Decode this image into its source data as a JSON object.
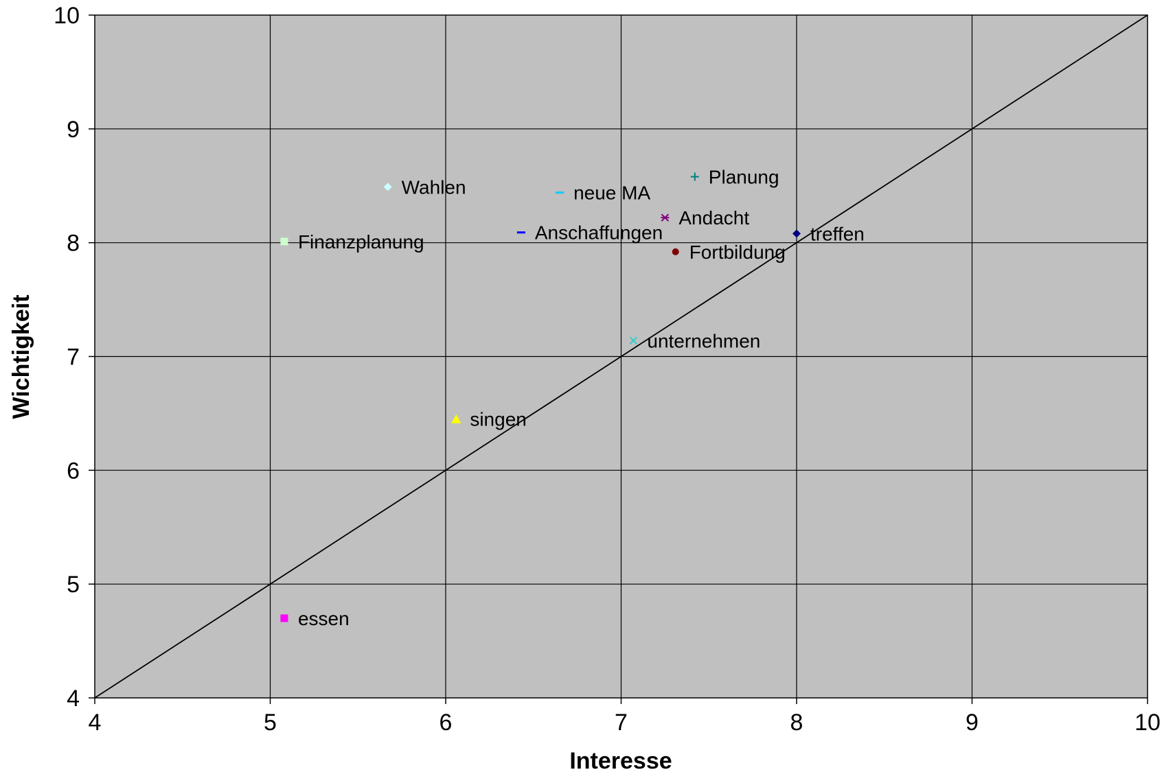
{
  "chart_data": {
    "type": "scatter",
    "xlabel": "Interesse",
    "ylabel": "Wichtigkeit",
    "xlim": [
      4,
      10
    ],
    "ylim": [
      4,
      10
    ],
    "xticks": [
      "4",
      "5",
      "6",
      "7",
      "8",
      "9",
      "10"
    ],
    "yticks": [
      "4",
      "5",
      "6",
      "7",
      "8",
      "9",
      "10"
    ],
    "grid": true,
    "plot_background": "#c0c0c0",
    "reference_line": {
      "from": [
        4,
        4
      ],
      "to": [
        10,
        10
      ]
    },
    "points": [
      {
        "label": "Wahlen",
        "x": 5.67,
        "y": 8.49,
        "marker": "diamond",
        "color": "#ccffff"
      },
      {
        "label": "neue MA",
        "x": 6.65,
        "y": 8.44,
        "marker": "dash",
        "color": "#00ccff"
      },
      {
        "label": "Planung",
        "x": 7.42,
        "y": 8.58,
        "marker": "plus",
        "color": "#008080"
      },
      {
        "label": "Andacht",
        "x": 7.25,
        "y": 8.22,
        "marker": "star",
        "color": "#800080"
      },
      {
        "label": "Finanzplanung",
        "x": 5.08,
        "y": 8.01,
        "marker": "square",
        "color": "#ccffcc"
      },
      {
        "label": "Anschaffungen",
        "x": 6.43,
        "y": 8.09,
        "marker": "dash",
        "color": "#0000ff"
      },
      {
        "label": "treffen",
        "x": 8.0,
        "y": 8.08,
        "marker": "diamond",
        "color": "#000080"
      },
      {
        "label": "Fortbildung",
        "x": 7.31,
        "y": 7.92,
        "marker": "circle",
        "color": "#800000"
      },
      {
        "label": "unternehmen",
        "x": 7.07,
        "y": 7.14,
        "marker": "x",
        "color": "#33cccc"
      },
      {
        "label": "singen",
        "x": 6.06,
        "y": 6.45,
        "marker": "triangle",
        "color": "#ffff00"
      },
      {
        "label": "essen",
        "x": 5.08,
        "y": 4.7,
        "marker": "square",
        "color": "#ff00ff"
      }
    ]
  }
}
